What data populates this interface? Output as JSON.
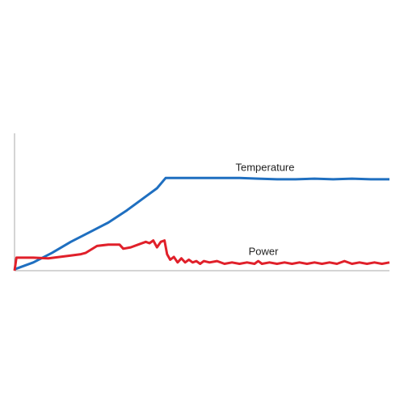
{
  "chart_data": {
    "type": "line",
    "xlim": [
      0,
      100
    ],
    "ylim": [
      0,
      100
    ],
    "series": [
      {
        "name": "Temperature",
        "color": "#1f6fc0",
        "x": [
          0,
          5,
          10,
          15,
          20,
          25,
          30,
          35,
          38,
          40.3,
          45,
          50,
          55,
          60,
          65,
          70,
          75,
          80,
          85,
          90,
          95,
          100
        ],
        "values": [
          1,
          6,
          13,
          21,
          28,
          35,
          44,
          54,
          60,
          67.5,
          67.5,
          67.5,
          67.5,
          67.5,
          67,
          66.5,
          66.5,
          67,
          66.5,
          67,
          66.5,
          66.5
        ]
      },
      {
        "name": "Power",
        "color": "#e0202a",
        "x": [
          0,
          0.5,
          5,
          9,
          12,
          15,
          17.7,
          19,
          22,
          25,
          28,
          29,
          31,
          33,
          35,
          36,
          37,
          38,
          39,
          40,
          40.7,
          41.5,
          42.5,
          43.5,
          44.5,
          45.5,
          46.5,
          47.5,
          48.5,
          49.5,
          50.5,
          52,
          54,
          56,
          58,
          60,
          62,
          64,
          65,
          66,
          68,
          70,
          72,
          74,
          76,
          78,
          80,
          82,
          84,
          86,
          88,
          90,
          92,
          94,
          96,
          98,
          100
        ],
        "values": [
          0,
          9.5,
          9.5,
          9,
          10,
          11,
          12,
          13,
          18,
          19,
          19,
          16,
          17,
          19,
          21,
          20,
          22,
          17,
          21,
          22,
          12,
          8,
          10,
          6,
          9,
          6,
          8,
          6,
          7,
          5,
          7,
          6,
          7,
          5,
          6,
          5,
          6,
          5,
          7,
          5,
          6,
          5,
          6,
          5,
          6,
          5,
          6,
          5,
          6,
          5,
          7,
          5,
          6,
          5,
          6,
          5,
          6
        ]
      }
    ]
  }
}
